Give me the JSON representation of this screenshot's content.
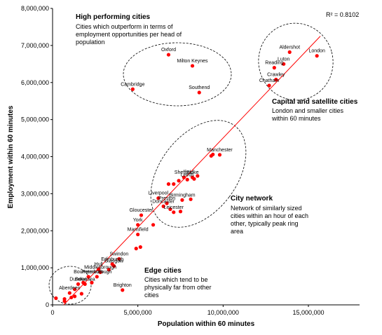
{
  "chart_data": {
    "type": "scatter",
    "xlabel": "Population within 60 minutes",
    "ylabel": "Employment within 60 minutes",
    "xlim": [
      0,
      18000000
    ],
    "ylim": [
      0,
      8000000
    ],
    "x_ticks": [
      0,
      5000000,
      10000000,
      15000000
    ],
    "x_tick_labels": [
      "0",
      "5,000,000",
      "10,000,000",
      "15,000,000"
    ],
    "y_ticks": [
      0,
      1000000,
      2000000,
      3000000,
      4000000,
      5000000,
      6000000,
      7000000,
      8000000
    ],
    "y_tick_labels": [
      "0",
      "1,000,000",
      "2,000,000",
      "3,000,000",
      "4,000,000",
      "5,000,000",
      "6,000,000",
      "7,000,000",
      "8,000,000"
    ],
    "r_squared": "R² = 0.8102",
    "trendline": {
      "x": [
        650000,
        15700000
      ],
      "y": [
        0,
        7250000
      ]
    },
    "point_color": "#ff0000",
    "line_color": "#ff0000",
    "points": [
      {
        "name": "London",
        "x": 15500000,
        "y": 6720000
      },
      {
        "name": "Aldershot",
        "x": 13900000,
        "y": 6820000
      },
      {
        "name": "Luton",
        "x": 13550000,
        "y": 6500000
      },
      {
        "name": "Reading",
        "x": 13000000,
        "y": 6400000
      },
      {
        "name": "Crawley",
        "x": 13100000,
        "y": 6080000
      },
      {
        "name": "Chatham",
        "x": 12700000,
        "y": 5920000
      },
      {
        "name": "Oxford",
        "x": 6800000,
        "y": 6750000
      },
      {
        "name": "Milton Keynes",
        "x": 8200000,
        "y": 6450000
      },
      {
        "name": "Cambridge",
        "x": 4700000,
        "y": 5820000
      },
      {
        "name": "Southend",
        "x": 8600000,
        "y": 5730000
      },
      {
        "name": "Manchester",
        "x": 9800000,
        "y": 4050000
      },
      {
        "name": "",
        "x": 9400000,
        "y": 4060000
      },
      {
        "name": "",
        "x": 9300000,
        "y": 4020000
      },
      {
        "name": "Stoke",
        "x": 8200000,
        "y": 3440000
      },
      {
        "name": "Sheffield",
        "x": 7700000,
        "y": 3440000
      },
      {
        "name": "Leeds",
        "x": 7900000,
        "y": 3380000
      },
      {
        "name": "",
        "x": 8300000,
        "y": 3400000
      },
      {
        "name": "",
        "x": 8500000,
        "y": 3480000
      },
      {
        "name": "",
        "x": 7400000,
        "y": 3350000
      },
      {
        "name": "",
        "x": 7100000,
        "y": 3260000
      },
      {
        "name": "",
        "x": 6800000,
        "y": 3260000
      },
      {
        "name": "Liverpool",
        "x": 6200000,
        "y": 2880000
      },
      {
        "name": "Preston",
        "x": 6700000,
        "y": 2740000
      },
      {
        "name": "Doncaster",
        "x": 6500000,
        "y": 2660000
      },
      {
        "name": "Birmingham",
        "x": 7600000,
        "y": 2830000
      },
      {
        "name": "",
        "x": 6900000,
        "y": 2580000
      },
      {
        "name": "Leicester",
        "x": 7100000,
        "y": 2500000
      },
      {
        "name": "",
        "x": 7500000,
        "y": 2520000
      },
      {
        "name": "",
        "x": 8100000,
        "y": 2850000
      },
      {
        "name": "Gloucester",
        "x": 5200000,
        "y": 2420000
      },
      {
        "name": "York",
        "x": 5000000,
        "y": 2160000
      },
      {
        "name": "",
        "x": 5900000,
        "y": 2160000
      },
      {
        "name": "Mansfield",
        "x": 5000000,
        "y": 1900000
      },
      {
        "name": "",
        "x": 5150000,
        "y": 1560000
      },
      {
        "name": "",
        "x": 4900000,
        "y": 1520000
      },
      {
        "name": "Swindon",
        "x": 3900000,
        "y": 1240000
      },
      {
        "name": "Edinburgh",
        "x": 3500000,
        "y": 1100000
      },
      {
        "name": "Glasgow",
        "x": 3600000,
        "y": 1050000
      },
      {
        "name": "Hull",
        "x": 2700000,
        "y": 960000
      },
      {
        "name": "Middlesbrough",
        "x": 2800000,
        "y": 880000
      },
      {
        "name": "",
        "x": 3300000,
        "y": 950000
      },
      {
        "name": "Bournemouth",
        "x": 2100000,
        "y": 760000
      },
      {
        "name": "Peterborough",
        "x": 2600000,
        "y": 760000
      },
      {
        "name": "",
        "x": 1800000,
        "y": 600000
      },
      {
        "name": "",
        "x": 2300000,
        "y": 600000
      },
      {
        "name": "Dundee",
        "x": 1500000,
        "y": 560000
      },
      {
        "name": "Swansea",
        "x": 1900000,
        "y": 560000
      },
      {
        "name": "",
        "x": 1300000,
        "y": 420000
      },
      {
        "name": "Aberdeen",
        "x": 1000000,
        "y": 320000
      },
      {
        "name": "",
        "x": 1700000,
        "y": 300000
      },
      {
        "name": "",
        "x": 1300000,
        "y": 230000
      },
      {
        "name": "",
        "x": 1100000,
        "y": 200000
      },
      {
        "name": "",
        "x": 700000,
        "y": 160000
      },
      {
        "name": "",
        "x": 200000,
        "y": 180000
      },
      {
        "name": "",
        "x": 700000,
        "y": 100000
      },
      {
        "name": "Brighton",
        "x": 4100000,
        "y": 400000
      }
    ],
    "groups": [
      {
        "title": "High performing cities",
        "text": [
          "Cities which outperform in terms of",
          "employment opportunities per head of",
          "population"
        ]
      },
      {
        "title": "Capital and satellite cities",
        "text": [
          "London and smaller cities",
          "within 60 minutes"
        ]
      },
      {
        "title": "City network",
        "text": [
          "Network of similarly sized",
          "cities within an hour of each",
          "other, typically peak ring",
          "area"
        ]
      },
      {
        "title": "Edge cities",
        "text": [
          "Cities which tend to be",
          "physically far from other",
          "cities"
        ]
      }
    ]
  }
}
